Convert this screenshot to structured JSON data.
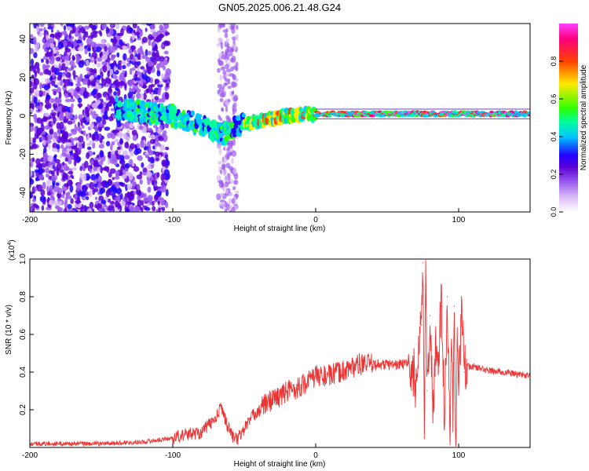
{
  "figure_title": "GN05.2025.006.21.48.G24",
  "chart_data": [
    {
      "type": "heatmap",
      "title": "GN05.2025.006.21.48.G24",
      "xlabel": "Height of straight line (km)",
      "ylabel": "Frequency (Hz)",
      "xlim": [
        -200,
        150
      ],
      "ylim": [
        -50,
        48
      ],
      "xticks": [
        -200,
        -100,
        0,
        100
      ],
      "yticks": [
        -40,
        -20,
        0,
        20,
        40
      ],
      "colorbar": {
        "label": "Normalized spectral amplitude",
        "range": [
          0.0,
          1.0
        ],
        "ticks": [
          0.0,
          0.2,
          0.4,
          0.6,
          0.8
        ],
        "colormap": [
          "#ffffff",
          "#d8b8f5",
          "#9b59f0",
          "#5a00d6",
          "#2000ff",
          "#00c8ff",
          "#00ff9a",
          "#30ff00",
          "#ffe800",
          "#ff4000",
          "#ff0080",
          "#ff40ff"
        ]
      },
      "features": {
        "noise_region_x": [
          -200,
          -103
        ],
        "noise_strip_x": [
          -68,
          -55
        ],
        "band": [
          {
            "x": -140,
            "f": 4
          },
          {
            "x": -120,
            "f": 2
          },
          {
            "x": -100,
            "f": 0
          },
          {
            "x": -80,
            "f": -5
          },
          {
            "x": -65,
            "f": -10
          },
          {
            "x": -55,
            "f": -5
          },
          {
            "x": -40,
            "f": -3
          },
          {
            "x": -20,
            "f": 0
          },
          {
            "x": 0,
            "f": 1
          },
          {
            "x": 50,
            "f": 1
          },
          {
            "x": 100,
            "f": 1
          },
          {
            "x": 150,
            "f": 1
          }
        ]
      }
    },
    {
      "type": "line",
      "xlabel": "Height of straight line (km)",
      "ylabel": "SNR (10 * v/v)",
      "scale_label": "(x10",
      "scale_exponent": "4",
      "xlim": [
        -200,
        150
      ],
      "ylim": [
        0,
        1.0
      ],
      "xticks": [
        -200,
        -100,
        0,
        100
      ],
      "yticks": [
        0.2,
        0.4,
        0.6,
        0.8,
        1.0
      ],
      "line_color": "#ee3333",
      "series": [
        {
          "x": [
            -200,
            -150,
            -120,
            -100,
            -90,
            -80,
            -75,
            -70,
            -66,
            -62,
            -58,
            -55,
            -50,
            -45,
            -40,
            -35,
            -30,
            -25,
            -20,
            -15,
            -10,
            -5,
            0,
            10,
            20,
            30,
            40,
            50,
            60,
            65,
            68,
            70,
            72,
            74,
            75,
            76,
            77,
            78,
            80,
            82,
            84,
            86,
            88,
            90,
            92,
            94,
            95,
            96,
            97,
            98,
            99,
            100,
            102,
            104,
            106,
            110,
            120,
            130,
            140,
            150
          ],
          "values": [
            0.02,
            0.02,
            0.03,
            0.05,
            0.07,
            0.08,
            0.12,
            0.15,
            0.22,
            0.12,
            0.06,
            0.04,
            0.1,
            0.16,
            0.2,
            0.23,
            0.26,
            0.27,
            0.3,
            0.31,
            0.33,
            0.35,
            0.38,
            0.38,
            0.41,
            0.44,
            0.44,
            0.44,
            0.44,
            0.45,
            0.38,
            0.3,
            0.55,
            0.65,
            0.98,
            0.08,
            1.0,
            0.3,
            0.7,
            0.2,
            0.55,
            0.4,
            0.75,
            0.1,
            0.8,
            0.08,
            0.5,
            0.2,
            0.75,
            0.05,
            0.55,
            0.3,
            0.7,
            0.4,
            0.43,
            0.43,
            0.41,
            0.4,
            0.39,
            0.38
          ]
        }
      ]
    }
  ]
}
